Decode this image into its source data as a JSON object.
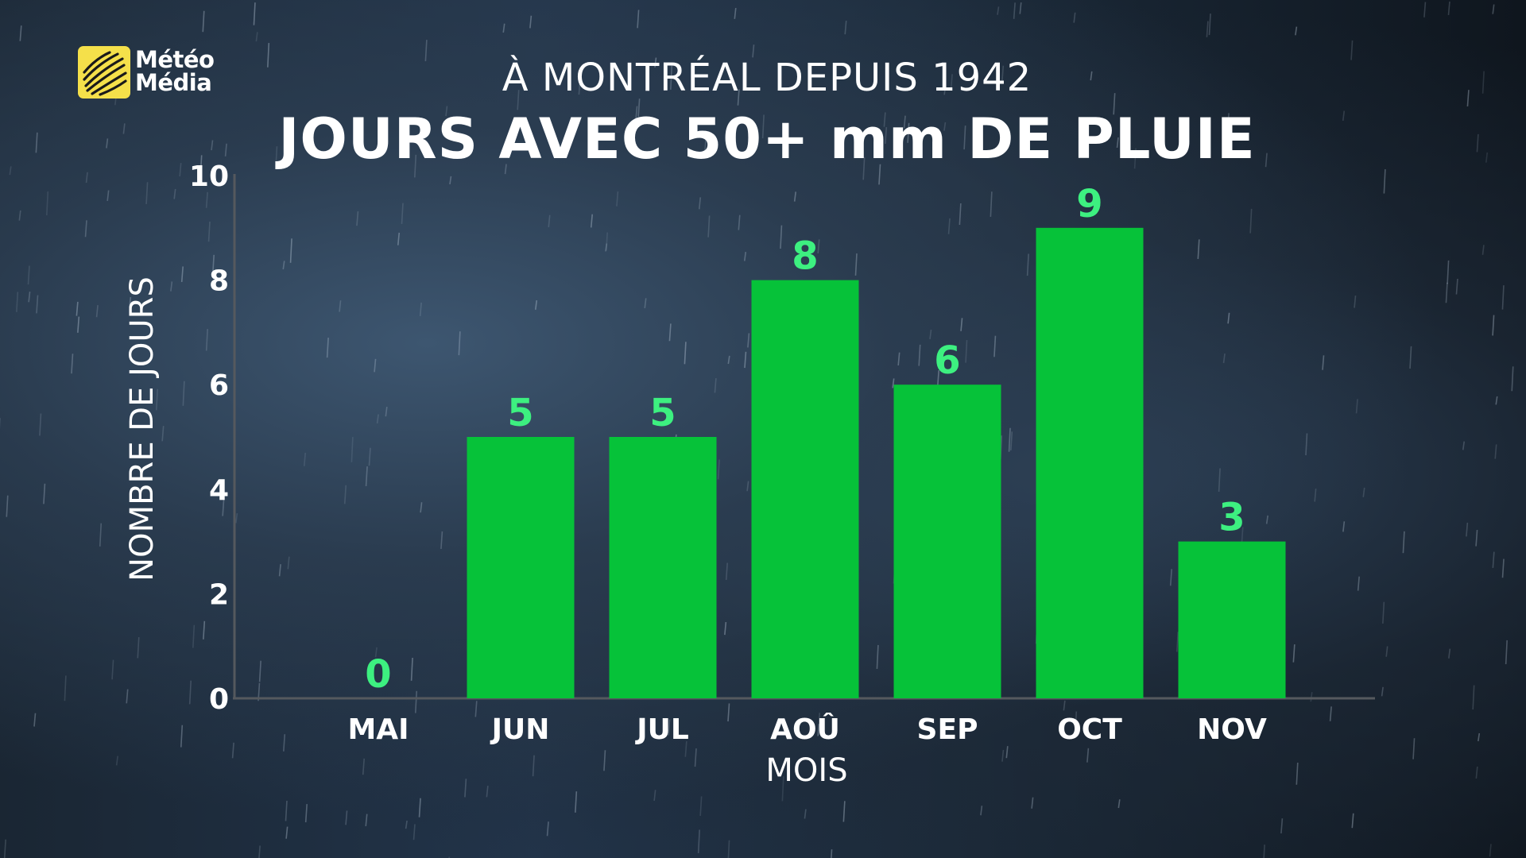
{
  "logo": {
    "line1": "Météo",
    "line2": "Média"
  },
  "colors": {
    "bar": "#06c239",
    "value_label": "#3df080",
    "axis": "#55595e",
    "text": "#ffffff",
    "logo_bg": "#f5e04a"
  },
  "chart_data": {
    "type": "bar",
    "subtitle": "À MONTRÉAL DEPUIS 1942",
    "title": "JOURS AVEC 50+ mm DE PLUIE",
    "xlabel": "MOIS",
    "ylabel": "NOMBRE DE JOURS",
    "categories": [
      "MAI",
      "JUN",
      "JUL",
      "AOÛ",
      "SEP",
      "OCT",
      "NOV"
    ],
    "values": [
      0,
      5,
      5,
      8,
      6,
      9,
      3
    ],
    "ylim": [
      0,
      10
    ],
    "yticks": [
      0,
      2,
      4,
      6,
      8,
      10
    ],
    "grid": false,
    "legend": "none"
  }
}
